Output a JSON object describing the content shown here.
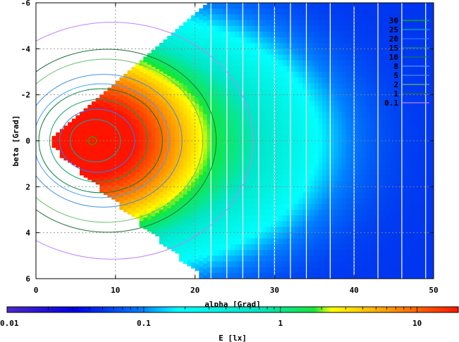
{
  "chart_data": {
    "type": "heatmap",
    "xlabel": "alpha [Grad]",
    "ylabel": "beta [Grad]",
    "xlim": [
      0,
      50
    ],
    "ylim": [
      6,
      -6
    ],
    "x_ticks": [
      "0",
      "10",
      "20",
      "30",
      "40",
      "50"
    ],
    "y_ticks": [
      "-6",
      "-4",
      "-2",
      "0",
      "2",
      "4",
      "6"
    ],
    "grid": true,
    "contour_levels": [
      {
        "label": "30",
        "color": "#00c000"
      },
      {
        "label": "25",
        "color": "#00b0b0"
      },
      {
        "label": "20",
        "color": "#2080ff"
      },
      {
        "label": "15",
        "color": "#00a060"
      },
      {
        "label": "10",
        "color": "#008040"
      },
      {
        "label": "8",
        "color": "#40a0ff"
      },
      {
        "label": "5",
        "color": "#4090e0"
      },
      {
        "label": "2",
        "color": "#60c060"
      },
      {
        "label": "1",
        "color": "#207040"
      },
      {
        "label": "0.1",
        "color": "#c080ff"
      }
    ],
    "legend_position": "top-right",
    "colorbar": {
      "label": "E [lx]",
      "scale": "log",
      "range": [
        0.01,
        20
      ],
      "tick_labels": [
        "0.01",
        "0.1",
        "1",
        "10"
      ],
      "tick_values": [
        0.01,
        0.1,
        1,
        10
      ]
    },
    "field": {
      "peak_alpha": 7,
      "peak_beta": 0,
      "peak_value": 30,
      "fan_apex_alpha": 2,
      "fan_half_angle_deg": 6,
      "slab_starts": [
        20,
        22,
        24,
        26,
        28,
        30,
        32,
        35,
        38,
        41,
        44,
        47
      ],
      "slab_width": 2
    }
  }
}
